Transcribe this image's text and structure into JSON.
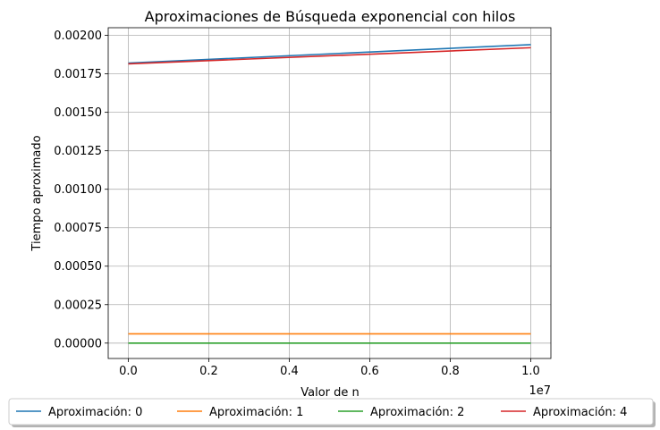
{
  "chart_data": {
    "type": "line",
    "title": "Aproximaciones de Búsqueda exponencial con hilos",
    "xlabel": "Valor de n",
    "ylabel": "Tiempo aproximado",
    "x_offset_text": "1e7",
    "x": [
      0,
      10000000
    ],
    "xlim": [
      -500000,
      10500000
    ],
    "ylim": [
      -0.0001,
      0.00205
    ],
    "x_ticks": [
      0,
      2000000,
      4000000,
      6000000,
      8000000,
      10000000
    ],
    "x_tick_labels": [
      "0.0",
      "0.2",
      "0.4",
      "0.6",
      "0.8",
      "1.0"
    ],
    "y_ticks": [
      0,
      0.00025,
      0.0005,
      0.00075,
      0.001,
      0.00125,
      0.0015,
      0.00175,
      0.002
    ],
    "y_tick_labels": [
      "0.00000",
      "0.00025",
      "0.00050",
      "0.00075",
      "0.00100",
      "0.00125",
      "0.00150",
      "0.00175",
      "0.00200"
    ],
    "grid": true,
    "legend_position": "bottom-center, outside",
    "series": [
      {
        "name": "Aproximación: 0",
        "color": "#1f77b4",
        "values": [
          0.00182,
          0.00194
        ]
      },
      {
        "name": "Aproximación: 1",
        "color": "#ff7f0e",
        "values": [
          6e-05,
          6e-05
        ]
      },
      {
        "name": "Aproximación: 2",
        "color": "#2ca02c",
        "values": [
          0.0,
          0.0
        ]
      },
      {
        "name": "Aproximación: 4",
        "color": "#d62728",
        "values": [
          0.001815,
          0.00192
        ]
      }
    ]
  }
}
